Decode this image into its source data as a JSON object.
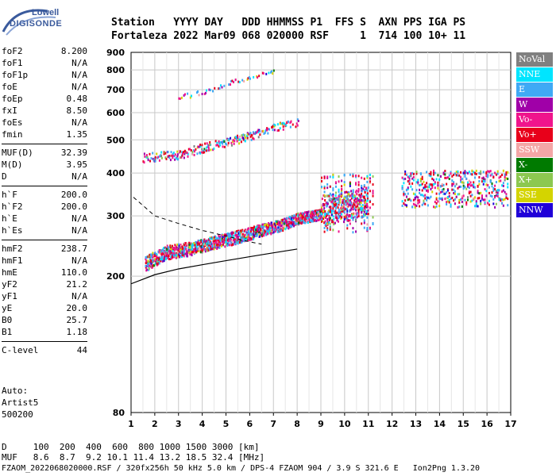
{
  "logo": {
    "line1": "Lowell",
    "line2": "DIGISONDE"
  },
  "header": {
    "labels": "Station   YYYY DAY   DDD HHMMSS P1  FFS S  AXN PPS IGA PS",
    "values": "Fortaleza 2022 Mar09 068 020000 RSF     1  714 100 10+ 11"
  },
  "params": {
    "group1": [
      {
        "label": "foF2",
        "value": "8.200"
      },
      {
        "label": "foF1",
        "value": "N/A"
      },
      {
        "label": "foF1p",
        "value": "N/A"
      },
      {
        "label": "foE",
        "value": "N/A"
      },
      {
        "label": "foEp",
        "value": "0.48"
      },
      {
        "label": "fxI",
        "value": "8.50"
      },
      {
        "label": "foEs",
        "value": "N/A"
      },
      {
        "label": "fmin",
        "value": "1.35"
      }
    ],
    "group2": [
      {
        "label": "MUF(D)",
        "value": "32.39"
      },
      {
        "label": "M(D)",
        "value": "3.95"
      },
      {
        "label": "D",
        "value": "N/A"
      }
    ],
    "group3": [
      {
        "label": "h`F",
        "value": "200.0"
      },
      {
        "label": "h`F2",
        "value": "200.0"
      },
      {
        "label": "h`E",
        "value": "N/A"
      },
      {
        "label": "h`Es",
        "value": "N/A"
      }
    ],
    "group4": [
      {
        "label": "hmF2",
        "value": "238.7"
      },
      {
        "label": "hmF1",
        "value": "N/A"
      },
      {
        "label": "hmE",
        "value": "110.0"
      },
      {
        "label": "yF2",
        "value": "21.2"
      },
      {
        "label": "yF1",
        "value": "N/A"
      },
      {
        "label": "yE",
        "value": "20.0"
      },
      {
        "label": "B0",
        "value": "25.7"
      },
      {
        "label": "B1",
        "value": "1.18"
      }
    ],
    "group5": [
      {
        "label": "C-level",
        "value": "44"
      }
    ]
  },
  "auto": {
    "line1": "Auto:",
    "line2": "Artist5",
    "line3": "500200"
  },
  "legend": [
    {
      "label": "NoVal",
      "color": "#808080"
    },
    {
      "label": "NNE",
      "color": "#00e5ff"
    },
    {
      "label": "E",
      "color": "#3fa9f5"
    },
    {
      "label": "W",
      "color": "#a000a8"
    },
    {
      "label": "Vo-",
      "color": "#f0148c"
    },
    {
      "label": "Vo+",
      "color": "#e8001a"
    },
    {
      "label": "SSW",
      "color": "#f4a6a6"
    },
    {
      "label": "X-",
      "color": "#007a00"
    },
    {
      "label": "X+",
      "color": "#8cc850"
    },
    {
      "label": "SSE",
      "color": "#d4d400"
    },
    {
      "label": "NNW",
      "color": "#2000d8"
    }
  ],
  "chart_data": {
    "type": "scatter",
    "title": "",
    "xlabel": "",
    "ylabel": "",
    "xlim": [
      1,
      17
    ],
    "ylim": [
      80,
      900
    ],
    "x_ticks": [
      "1",
      "2",
      "3",
      "4",
      "5",
      "6",
      "7",
      "8",
      "9",
      "10",
      "11",
      "12",
      "13",
      "14",
      "15",
      "16",
      "17"
    ],
    "y_ticks": [
      "80",
      "200",
      "300",
      "400",
      "500",
      "600",
      "700",
      "800",
      "900"
    ],
    "grid": true,
    "legend_position": "right",
    "y_scale": "log",
    "traces": [
      {
        "name": "F2 trace",
        "x": [
          1.6,
          2.5,
          3.5,
          4.5,
          5.5,
          6.5,
          7.5,
          8.0,
          9.0,
          10.0,
          11.0
        ],
        "y": [
          215,
          232,
          238,
          248,
          258,
          270,
          282,
          292,
          300,
          310,
          320
        ]
      },
      {
        "name": "2F2 trace",
        "x": [
          1.5,
          3,
          4,
          5,
          6,
          7,
          8
        ],
        "y": [
          440,
          450,
          470,
          490,
          510,
          540,
          560
        ]
      },
      {
        "name": "3F2 trace",
        "x": [
          3,
          4,
          5,
          6,
          7
        ],
        "y": [
          660,
          690,
          730,
          760,
          790
        ]
      }
    ],
    "profile_curve": {
      "x": [
        1.0,
        2.0,
        3.0,
        4.0,
        5.0,
        6.0,
        7.0,
        8.0
      ],
      "y": [
        190,
        202,
        210,
        216,
        222,
        228,
        234,
        240
      ]
    },
    "dashed_curve": {
      "x": [
        1.1,
        2.0,
        3.0,
        4.0,
        5.0,
        6.0,
        6.5
      ],
      "y": [
        340,
        300,
        285,
        272,
        262,
        252,
        248
      ]
    }
  },
  "footer": {
    "d_row": "D     100  200  400  600  800 1000 1500 3000 [km]",
    "muf_row": "MUF   8.6  8.7  9.2 10.1 11.4 13.2 18.5 32.4 [MHz]",
    "file_line": "FZAOM_2022068020000.RSF / 320fx256h 50 kHz 5.0 km / DPS-4 FZAOM 904 / 3.9 S 321.6 E   Ion2Png 1.3.20"
  }
}
